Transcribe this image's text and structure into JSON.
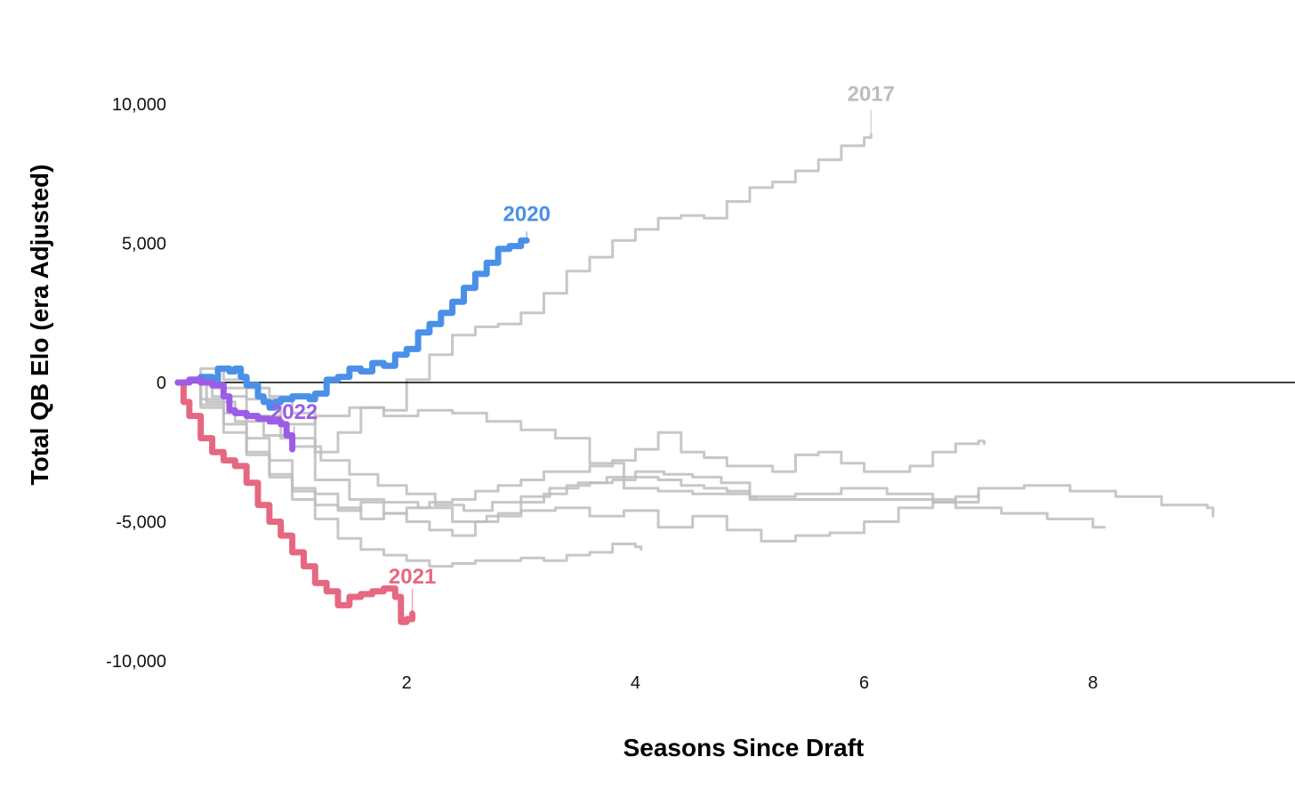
{
  "chart_data": {
    "type": "line",
    "xlabel": "Seasons Since Draft",
    "ylabel": "Total QB Elo (era Adjusted)",
    "xlim": [
      0,
      9.6
    ],
    "ylim": [
      -10000,
      10500
    ],
    "x_ticks": [
      2,
      4,
      6,
      8
    ],
    "x_tick_labels": [
      "2",
      "4",
      "6",
      "8"
    ],
    "y_ticks": [
      10000,
      5000,
      0,
      -5000,
      -10000
    ],
    "y_tick_labels": [
      "10,000",
      "5,000",
      "0",
      "-5,000",
      "-10,000"
    ],
    "zero_line": true,
    "grid": false,
    "legend": "none",
    "highlighted": [
      {
        "name": "2020",
        "color": "#4a90e8",
        "points": [
          [
            0,
            0
          ],
          [
            0.1,
            100
          ],
          [
            0.2,
            200
          ],
          [
            0.3,
            0
          ],
          [
            0.35,
            500
          ],
          [
            0.45,
            400
          ],
          [
            0.5,
            500
          ],
          [
            0.55,
            200
          ],
          [
            0.6,
            -100
          ],
          [
            0.7,
            -500
          ],
          [
            0.75,
            -700
          ],
          [
            0.8,
            -900
          ],
          [
            0.85,
            -700
          ],
          [
            0.9,
            -600
          ],
          [
            1.0,
            -500
          ],
          [
            1.1,
            -500
          ],
          [
            1.15,
            -600
          ],
          [
            1.2,
            -400
          ],
          [
            1.3,
            100
          ],
          [
            1.4,
            200
          ],
          [
            1.5,
            500
          ],
          [
            1.6,
            400
          ],
          [
            1.7,
            700
          ],
          [
            1.8,
            600
          ],
          [
            1.9,
            1000
          ],
          [
            2.0,
            1200
          ],
          [
            2.1,
            1800
          ],
          [
            2.2,
            2100
          ],
          [
            2.3,
            2500
          ],
          [
            2.4,
            2900
          ],
          [
            2.5,
            3400
          ],
          [
            2.6,
            3900
          ],
          [
            2.7,
            4300
          ],
          [
            2.8,
            4800
          ],
          [
            2.9,
            4900
          ],
          [
            3.0,
            5100
          ],
          [
            3.05,
            5100
          ]
        ]
      },
      {
        "name": "2021",
        "color": "#e66880",
        "points": [
          [
            0,
            0
          ],
          [
            0.05,
            -700
          ],
          [
            0.1,
            -1200
          ],
          [
            0.2,
            -2000
          ],
          [
            0.3,
            -2500
          ],
          [
            0.4,
            -2800
          ],
          [
            0.5,
            -3000
          ],
          [
            0.6,
            -3600
          ],
          [
            0.7,
            -4400
          ],
          [
            0.8,
            -5000
          ],
          [
            0.9,
            -5500
          ],
          [
            1.0,
            -6100
          ],
          [
            1.1,
            -6600
          ],
          [
            1.2,
            -7200
          ],
          [
            1.3,
            -7500
          ],
          [
            1.4,
            -8000
          ],
          [
            1.5,
            -7700
          ],
          [
            1.6,
            -7600
          ],
          [
            1.7,
            -7500
          ],
          [
            1.8,
            -7400
          ],
          [
            1.9,
            -7700
          ],
          [
            1.95,
            -8600
          ],
          [
            2.0,
            -8500
          ],
          [
            2.05,
            -8300
          ]
        ]
      },
      {
        "name": "2022",
        "color": "#9c5ce6",
        "points": [
          [
            0,
            0
          ],
          [
            0.1,
            100
          ],
          [
            0.2,
            0
          ],
          [
            0.3,
            -100
          ],
          [
            0.4,
            -500
          ],
          [
            0.45,
            -1000
          ],
          [
            0.5,
            -1100
          ],
          [
            0.6,
            -1200
          ],
          [
            0.7,
            -1300
          ],
          [
            0.8,
            -1400
          ],
          [
            0.9,
            -1500
          ],
          [
            0.95,
            -1900
          ],
          [
            1.0,
            -2400
          ]
        ]
      }
    ],
    "other_series": [
      {
        "name": "2017",
        "points": [
          [
            0,
            0
          ],
          [
            0.2,
            500
          ],
          [
            0.4,
            100
          ],
          [
            0.6,
            -200
          ],
          [
            0.8,
            -500
          ],
          [
            1.0,
            -1100
          ],
          [
            1.2,
            -2500
          ],
          [
            1.4,
            -1800
          ],
          [
            1.6,
            -900
          ],
          [
            1.8,
            -1000
          ],
          [
            2.0,
            100
          ],
          [
            2.2,
            1000
          ],
          [
            2.4,
            1700
          ],
          [
            2.6,
            2000
          ],
          [
            2.8,
            2100
          ],
          [
            3.0,
            2500
          ],
          [
            3.2,
            3200
          ],
          [
            3.4,
            4000
          ],
          [
            3.6,
            4500
          ],
          [
            3.8,
            5100
          ],
          [
            4.0,
            5500
          ],
          [
            4.2,
            5900
          ],
          [
            4.4,
            6000
          ],
          [
            4.6,
            5900
          ],
          [
            4.8,
            6500
          ],
          [
            5.0,
            7000
          ],
          [
            5.2,
            7200
          ],
          [
            5.4,
            7600
          ],
          [
            5.6,
            8000
          ],
          [
            5.8,
            8500
          ],
          [
            6.0,
            8800
          ],
          [
            6.06,
            8900
          ]
        ]
      },
      {
        "name": "",
        "points": [
          [
            0,
            0
          ],
          [
            0.3,
            -200
          ],
          [
            0.6,
            -600
          ],
          [
            0.9,
            -1500
          ],
          [
            1.2,
            -1200
          ],
          [
            1.5,
            -900
          ],
          [
            1.8,
            -1200
          ],
          [
            2.1,
            -1000
          ],
          [
            2.4,
            -1100
          ],
          [
            2.7,
            -1400
          ],
          [
            3.0,
            -1700
          ],
          [
            3.3,
            -2000
          ],
          [
            3.6,
            -2900
          ],
          [
            3.9,
            -3800
          ],
          [
            4.2,
            -3900
          ],
          [
            4.5,
            -4000
          ],
          [
            4.8,
            -4000
          ],
          [
            5.0,
            -4200
          ],
          [
            5.3,
            -4200
          ],
          [
            5.6,
            -4200
          ],
          [
            6.0,
            -4200
          ],
          [
            6.4,
            -4200
          ],
          [
            6.8,
            -4500
          ],
          [
            7.2,
            -4700
          ],
          [
            7.6,
            -4900
          ],
          [
            8.0,
            -5200
          ],
          [
            8.1,
            -5200
          ]
        ]
      },
      {
        "name": "",
        "points": [
          [
            0,
            0
          ],
          [
            0.2,
            -600
          ],
          [
            0.4,
            -1100
          ],
          [
            0.6,
            -2000
          ],
          [
            0.8,
            -2800
          ],
          [
            1.0,
            -3800
          ],
          [
            1.2,
            -4000
          ],
          [
            1.4,
            -4500
          ],
          [
            1.6,
            -4900
          ],
          [
            1.8,
            -4700
          ],
          [
            2.0,
            -4500
          ],
          [
            2.2,
            -4300
          ],
          [
            2.4,
            -4200
          ],
          [
            2.6,
            -3900
          ],
          [
            2.8,
            -3700
          ],
          [
            3.0,
            -3500
          ],
          [
            3.2,
            -3200
          ],
          [
            3.4,
            -3200
          ],
          [
            3.6,
            -3000
          ],
          [
            3.8,
            -2800
          ],
          [
            4.0,
            -2400
          ],
          [
            4.2,
            -1800
          ],
          [
            4.4,
            -2500
          ],
          [
            4.6,
            -2700
          ],
          [
            4.8,
            -3000
          ],
          [
            5.0,
            -3000
          ],
          [
            5.2,
            -3200
          ],
          [
            5.4,
            -2600
          ],
          [
            5.6,
            -2500
          ],
          [
            5.8,
            -2900
          ],
          [
            6.0,
            -3200
          ],
          [
            6.2,
            -3200
          ],
          [
            6.4,
            -3000
          ],
          [
            6.6,
            -2500
          ],
          [
            6.8,
            -2200
          ],
          [
            7.0,
            -2100
          ],
          [
            7.05,
            -2200
          ]
        ]
      },
      {
        "name": "",
        "points": [
          [
            0,
            0
          ],
          [
            0.2,
            -900
          ],
          [
            0.4,
            -1800
          ],
          [
            0.6,
            -2600
          ],
          [
            0.8,
            -3400
          ],
          [
            1.0,
            -3900
          ],
          [
            1.2,
            -4400
          ],
          [
            1.4,
            -4600
          ],
          [
            1.6,
            -4300
          ],
          [
            1.8,
            -4700
          ],
          [
            2.0,
            -5000
          ],
          [
            2.2,
            -5300
          ],
          [
            2.4,
            -5500
          ],
          [
            2.6,
            -5000
          ],
          [
            2.8,
            -4700
          ],
          [
            3.0,
            -4300
          ],
          [
            3.2,
            -4000
          ],
          [
            3.4,
            -3700
          ],
          [
            3.6,
            -3600
          ],
          [
            3.8,
            -3500
          ],
          [
            4.0,
            -3400
          ],
          [
            4.2,
            -3500
          ],
          [
            4.4,
            -3700
          ],
          [
            4.6,
            -3800
          ],
          [
            4.8,
            -3900
          ],
          [
            5.0,
            -4100
          ],
          [
            5.4,
            -4000
          ],
          [
            5.8,
            -3800
          ],
          [
            6.2,
            -4000
          ],
          [
            6.6,
            -4300
          ],
          [
            7.0,
            -3800
          ],
          [
            7.4,
            -3700
          ],
          [
            7.8,
            -3900
          ],
          [
            8.2,
            -4100
          ],
          [
            8.6,
            -4400
          ],
          [
            9.0,
            -4500
          ],
          [
            9.05,
            -4800
          ]
        ]
      },
      {
        "name": "",
        "points": [
          [
            0,
            0
          ],
          [
            0.2,
            -800
          ],
          [
            0.4,
            -1500
          ],
          [
            0.6,
            -2500
          ],
          [
            0.8,
            -3300
          ],
          [
            1.0,
            -4200
          ],
          [
            1.2,
            -4900
          ],
          [
            1.4,
            -5600
          ],
          [
            1.6,
            -6000
          ],
          [
            1.8,
            -6200
          ],
          [
            2.0,
            -6400
          ],
          [
            2.2,
            -6600
          ],
          [
            2.4,
            -6500
          ],
          [
            2.6,
            -6400
          ],
          [
            2.8,
            -6400
          ],
          [
            3.0,
            -6300
          ],
          [
            3.2,
            -6400
          ],
          [
            3.4,
            -6200
          ],
          [
            3.6,
            -6100
          ],
          [
            3.8,
            -5800
          ],
          [
            4.0,
            -5900
          ],
          [
            4.05,
            -6000
          ]
        ]
      },
      {
        "name": "",
        "points": [
          [
            0,
            0
          ],
          [
            0.3,
            -500
          ],
          [
            0.6,
            -1200
          ],
          [
            0.9,
            -2000
          ],
          [
            1.2,
            -3500
          ],
          [
            1.5,
            -4200
          ],
          [
            1.8,
            -4300
          ],
          [
            2.1,
            -4500
          ],
          [
            2.4,
            -5000
          ],
          [
            2.7,
            -4800
          ],
          [
            3.0,
            -4600
          ],
          [
            3.3,
            -4500
          ],
          [
            3.6,
            -4800
          ],
          [
            3.9,
            -4600
          ],
          [
            4.2,
            -5200
          ],
          [
            4.5,
            -4800
          ],
          [
            4.8,
            -5300
          ],
          [
            5.1,
            -5700
          ],
          [
            5.4,
            -5500
          ],
          [
            5.7,
            -5400
          ],
          [
            6.0,
            -5000
          ],
          [
            6.3,
            -4500
          ],
          [
            6.6,
            -4300
          ],
          [
            6.8,
            -4100
          ],
          [
            7.0,
            -4000
          ]
        ]
      },
      {
        "name": "",
        "points": [
          [
            0,
            0
          ],
          [
            0.25,
            -700
          ],
          [
            0.5,
            -1400
          ],
          [
            0.75,
            -1900
          ],
          [
            1.0,
            -2300
          ],
          [
            1.25,
            -2800
          ],
          [
            1.5,
            -3300
          ],
          [
            1.75,
            -3700
          ],
          [
            2.0,
            -4000
          ],
          [
            2.25,
            -4400
          ],
          [
            2.5,
            -4600
          ],
          [
            2.75,
            -4300
          ],
          [
            3.0,
            -4100
          ],
          [
            3.25,
            -3800
          ],
          [
            3.5,
            -3600
          ],
          [
            3.75,
            -3400
          ],
          [
            4.0,
            -3200
          ],
          [
            4.25,
            -3300
          ],
          [
            4.5,
            -3400
          ],
          [
            4.75,
            -3600
          ],
          [
            5.0,
            -4100
          ],
          [
            5.05,
            -4200
          ]
        ]
      }
    ]
  },
  "colors": {
    "other_series": "#bdbdbd",
    "label_2017": "#bdbdbd",
    "zero_line": "#000000"
  }
}
